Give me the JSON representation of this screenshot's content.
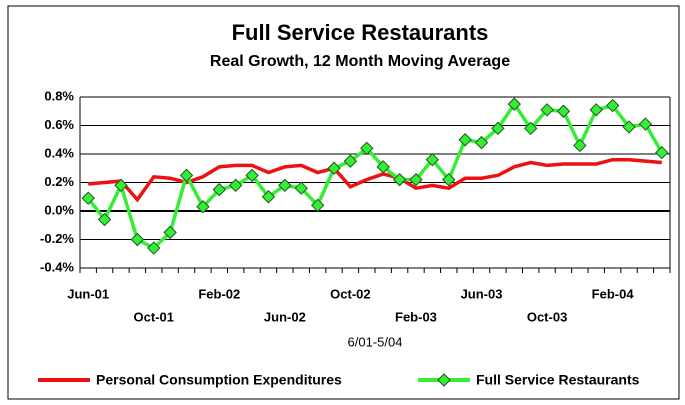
{
  "chart_data": {
    "type": "line",
    "title": "Full Service Restaurants",
    "subtitle": "Real Growth, 12 Month Moving Average",
    "x_label": "6/01-5/04",
    "categories": [
      "Jun-01",
      null,
      null,
      null,
      "Oct-01",
      null,
      null,
      null,
      "Feb-02",
      null,
      null,
      null,
      "Jun-02",
      null,
      null,
      null,
      "Oct-02",
      null,
      null,
      null,
      "Feb-03",
      null,
      null,
      null,
      "Jun-03",
      null,
      null,
      null,
      "Oct-03",
      null,
      null,
      null,
      "Feb-04",
      null,
      null,
      null
    ],
    "series": [
      {
        "name": "Personal Consumption Expenditures",
        "color": "#ee1111",
        "values": [
          0.19,
          0.2,
          0.21,
          0.08,
          0.24,
          0.23,
          0.2,
          0.24,
          0.31,
          0.32,
          0.32,
          0.27,
          0.31,
          0.32,
          0.27,
          0.3,
          0.17,
          0.22,
          0.26,
          0.23,
          0.16,
          0.18,
          0.16,
          0.23,
          0.23,
          0.25,
          0.31,
          0.34,
          0.32,
          0.33,
          0.33,
          0.33,
          0.36,
          0.36,
          0.35,
          0.34
        ]
      },
      {
        "name": "Full Service Restaurants",
        "color": "#33ee33",
        "marker": "diamond",
        "values": [
          0.09,
          -0.06,
          0.18,
          -0.2,
          -0.26,
          -0.15,
          0.25,
          0.03,
          0.15,
          0.18,
          0.25,
          0.1,
          0.18,
          0.16,
          0.04,
          0.3,
          0.35,
          0.44,
          0.31,
          0.22,
          0.22,
          0.36,
          0.22,
          0.5,
          0.48,
          0.58,
          0.75,
          0.58,
          0.71,
          0.7,
          0.46,
          0.71,
          0.74,
          0.59,
          0.61,
          0.41
        ]
      }
    ],
    "ylim": [
      -0.4,
      0.8
    ],
    "yticks": [
      {
        "value": -0.4,
        "label": "-0.4%"
      },
      {
        "value": -0.2,
        "label": "-0.2%"
      },
      {
        "value": 0,
        "label": "0.0%"
      },
      {
        "value": 0.2,
        "label": "0.2%"
      },
      {
        "value": 0.4,
        "label": "0.4%"
      },
      {
        "value": 0.6,
        "label": "0.6%"
      },
      {
        "value": 0.8,
        "label": "0.8%"
      }
    ],
    "grid": true,
    "legend": "bottom"
  }
}
